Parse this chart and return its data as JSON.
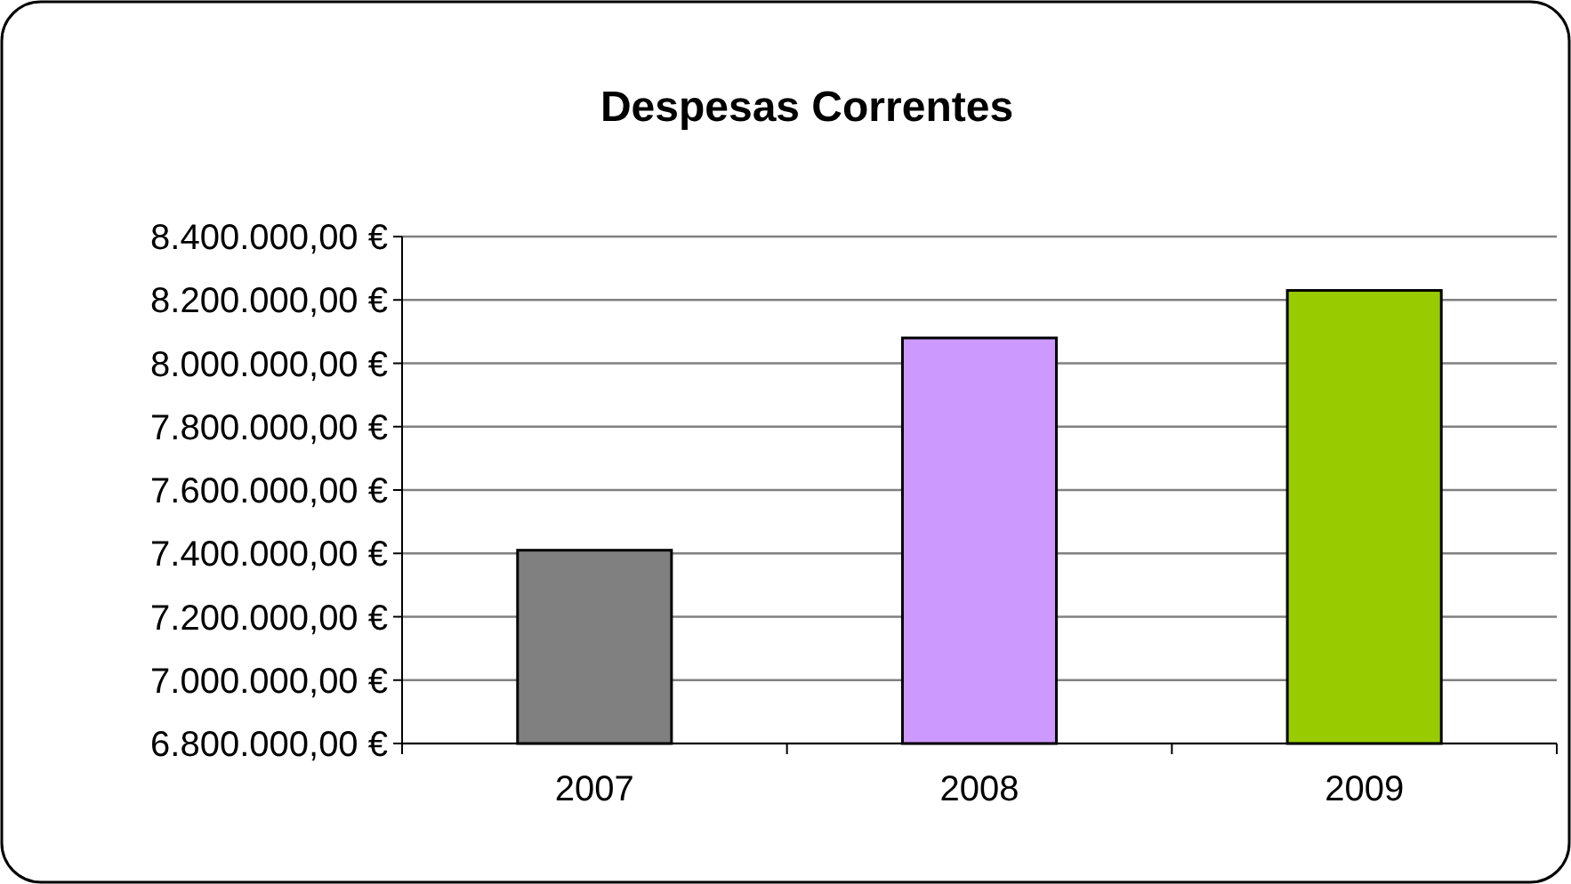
{
  "chart_data": {
    "type": "bar",
    "title": "Despesas Correntes",
    "categories": [
      "2007",
      "2008",
      "2009"
    ],
    "values": [
      7410000,
      8080000,
      8230000
    ],
    "colors": [
      "#808080",
      "#cc99ff",
      "#99cc00"
    ],
    "ylim": [
      6800000,
      8400000
    ],
    "yticks": [
      {
        "value": 6800000,
        "label": "6.800.000,00 €"
      },
      {
        "value": 7000000,
        "label": "7.000.000,00 €"
      },
      {
        "value": 7200000,
        "label": "7.200.000,00 €"
      },
      {
        "value": 7400000,
        "label": "7.400.000,00 €"
      },
      {
        "value": 7600000,
        "label": "7.600.000,00 €"
      },
      {
        "value": 7800000,
        "label": "7.800.000,00 €"
      },
      {
        "value": 8000000,
        "label": "8.000.000,00 €"
      },
      {
        "value": 8200000,
        "label": "8.200.000,00 €"
      },
      {
        "value": 8400000,
        "label": "8.400.000,00 €"
      }
    ],
    "grid": "y"
  }
}
